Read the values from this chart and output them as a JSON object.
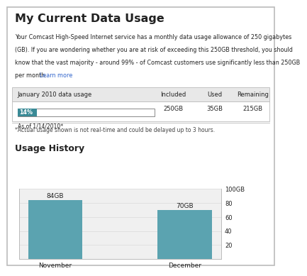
{
  "title": "My Current Data Usage",
  "desc_lines": [
    "Your Comcast High-Speed Internet service has a monthly data usage allowance of 250 gigabytes",
    "(GB). If you are wondering whether you are at risk of exceeding this 250GB threshold, you should",
    "know that the vast majority - around 99% - of Comcast customers use significantly less than 250GB",
    "per month."
  ],
  "learn_more": "Learn more",
  "table_header": [
    "January 2010 data usage",
    "Included",
    "Used",
    "Remaining"
  ],
  "table_values": [
    "14%",
    "250GB",
    "35GB",
    "215GB"
  ],
  "as_of": "As of 1/14/2010*",
  "footnote": "*Actual usage shown is not real-time and could be delayed up to 3 hours.",
  "section_title": "Usage History",
  "bar_labels": [
    "November",
    "December"
  ],
  "bar_values": [
    84,
    70
  ],
  "bar_annotations": [
    "84GB",
    "70GB"
  ],
  "bar_color": "#5ba3b0",
  "bar_percent": 14,
  "bar_pct_label": "14%",
  "y_max": 100,
  "y_ticks": [
    20,
    40,
    60,
    80,
    100
  ],
  "y_tick_labels": [
    "20",
    "40",
    "60",
    "80",
    "100GB"
  ],
  "bg_color": "#ffffff",
  "outer_border_color": "#bbbbbb",
  "table_header_bg": "#e8e8e8",
  "progress_bar_color": "#3a8a96",
  "progress_bar_empty": "#ffffff",
  "progress_bar_border": "#888888",
  "text_color": "#222222",
  "link_color": "#3366cc",
  "footnote_color": "#444444",
  "chart_bg": "#f0f0f0",
  "chart_border": "#bbbbbb",
  "grid_color": "#dddddd"
}
